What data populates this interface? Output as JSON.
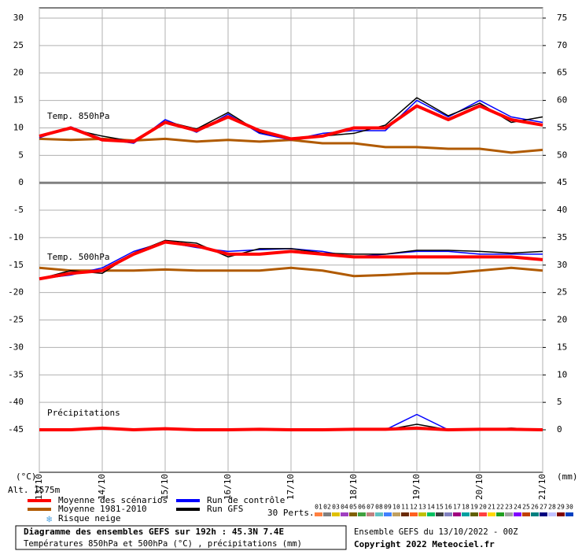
{
  "chart_data": {
    "type": "line",
    "title": "Diagramme des ensembles GEFS sur 192h : 45.3N 7.4E",
    "subtitle": "Températures 850hPa et 500hPa (°C) , précipitations (mm)",
    "run_info": "Ensemble GEFS du 13/10/2022 - 00Z",
    "copyright": "Copyright 2022 Meteociel.fr",
    "y_unit": "(°C)",
    "y2_unit": "(mm)",
    "altitude": "Alt. 1575m",
    "grid": true,
    "x": [
      0,
      12,
      24,
      36,
      48,
      60,
      72,
      84,
      96,
      108,
      120,
      132,
      144,
      156,
      168,
      180,
      192
    ],
    "xlim": [
      0,
      192
    ],
    "xticks": [
      {
        "value": 0,
        "label": "13/10"
      },
      {
        "value": 24,
        "label": "14/10"
      },
      {
        "value": 48,
        "label": "15/10"
      },
      {
        "value": 72,
        "label": "16/10"
      },
      {
        "value": 96,
        "label": "17/10"
      },
      {
        "value": 120,
        "label": "18/10"
      },
      {
        "value": 144,
        "label": "19/10"
      },
      {
        "value": 168,
        "label": "20/10"
      },
      {
        "value": 192,
        "label": "21/10"
      }
    ],
    "ylim": [
      -52.74,
      31.86
    ],
    "yticks": [
      30,
      25,
      20,
      15,
      10,
      5,
      0,
      -5,
      -10,
      -15,
      -20,
      -25,
      -30,
      -35,
      -40,
      -45
    ],
    "y2lim": [
      -7.74,
      76.86
    ],
    "y2ticks": [
      75,
      70,
      65,
      60,
      55,
      50,
      45,
      40,
      35,
      30,
      25,
      20,
      15,
      10,
      5,
      0
    ],
    "panels": [
      {
        "label": "Temp. 850hPa",
        "series": [
          {
            "name": "Moyenne 1981-2010",
            "color": "#b05a00",
            "values": [
              8,
              7.8,
              8,
              7.7,
              8,
              7.5,
              7.8,
              7.5,
              7.8,
              7.2,
              7.2,
              6.5,
              6.5,
              6.2,
              6.2,
              5.5,
              6
            ]
          },
          {
            "name": "Run de contrôle",
            "color": "#0000ff",
            "values": [
              8.2,
              10.2,
              8,
              7.2,
              11.5,
              9.2,
              12.5,
              9,
              7.8,
              9,
              9.5,
              9.5,
              15,
              12,
              15,
              12,
              11
            ]
          },
          {
            "name": "Run GFS",
            "color": "#000000",
            "values": [
              8.5,
              9.8,
              8.5,
              7.5,
              11.2,
              9.8,
              12.8,
              9.2,
              8,
              8.5,
              9,
              10.5,
              15.5,
              12.2,
              14.5,
              11,
              12
            ]
          },
          {
            "name": "Moyenne des scénarios",
            "color": "#ff0000",
            "values": [
              8.5,
              10,
              7.8,
              7.5,
              11,
              9.5,
              12,
              9.5,
              8,
              8.5,
              10,
              10,
              14,
              11.5,
              14,
              11.5,
              10.5
            ]
          }
        ]
      },
      {
        "label": "Temp. 500hPa",
        "series": [
          {
            "name": "Moyenne 1981-2010",
            "color": "#b05a00",
            "values": [
              -15.5,
              -16,
              -16,
              -16,
              -15.8,
              -16,
              -16,
              -16,
              -15.5,
              -16,
              -17,
              -16.8,
              -16.5,
              -16.5,
              -16,
              -15.5,
              -16
            ]
          },
          {
            "name": "Run de contrôle",
            "color": "#0000ff",
            "values": [
              -17.5,
              -16.8,
              -15.5,
              -12.5,
              -10.8,
              -11.8,
              -12.5,
              -12.2,
              -12,
              -12.5,
              -13.5,
              -13,
              -12.5,
              -12.5,
              -13,
              -13,
              -13
            ]
          },
          {
            "name": "Run GFS",
            "color": "#000000",
            "values": [
              -17.5,
              -16,
              -16.5,
              -12.8,
              -10.5,
              -11,
              -13.5,
              -12,
              -12,
              -12.8,
              -13,
              -13,
              -12.3,
              -12.3,
              -12.5,
              -12.8,
              -12.5
            ]
          },
          {
            "name": "Moyenne des scénarios",
            "color": "#ff0000",
            "values": [
              -17.5,
              -16.5,
              -16,
              -13,
              -10.8,
              -11.5,
              -13,
              -13,
              -12.5,
              -13,
              -13.5,
              -13.5,
              -13.5,
              -13.5,
              -13.5,
              -13.5,
              -14
            ]
          }
        ]
      },
      {
        "label": "Précipitations",
        "series": [
          {
            "name": "Run de contrôle",
            "color": "#0000ff",
            "axis": "y2",
            "values": [
              0,
              0,
              0.2,
              0,
              0.1,
              0,
              0,
              0.2,
              0,
              0,
              0,
              0,
              2.8,
              0,
              0,
              0,
              0
            ]
          },
          {
            "name": "Run GFS",
            "color": "#000000",
            "axis": "y2",
            "values": [
              0,
              0,
              0.4,
              0,
              0.2,
              0,
              0,
              0,
              0,
              0,
              0,
              0,
              1,
              0,
              0,
              0.3,
              0
            ]
          },
          {
            "name": "Moyenne des scénarios",
            "color": "#ff0000",
            "axis": "y2",
            "values": [
              0,
              0,
              0.3,
              0,
              0.2,
              0,
              0,
              0.1,
              0,
              0,
              0.1,
              0.1,
              0.3,
              0,
              0.1,
              0.1,
              0
            ]
          }
        ]
      }
    ],
    "snow_risk_label": "Risque neige",
    "members_label": "30 Perts.",
    "members": [
      {
        "name": "01",
        "color": "#ff8040"
      },
      {
        "name": "02",
        "color": "#808080"
      },
      {
        "name": "03",
        "color": "#e0c000"
      },
      {
        "name": "04",
        "color": "#a040c0"
      },
      {
        "name": "05",
        "color": "#806000"
      },
      {
        "name": "06",
        "color": "#40a040"
      },
      {
        "name": "07",
        "color": "#c08080"
      },
      {
        "name": "08",
        "color": "#60c0c0"
      },
      {
        "name": "09",
        "color": "#4080ff"
      },
      {
        "name": "10",
        "color": "#c0a060"
      },
      {
        "name": "11",
        "color": "#6a2a00"
      },
      {
        "name": "12",
        "color": "#ff6020"
      },
      {
        "name": "13",
        "color": "#c0c000"
      },
      {
        "name": "14",
        "color": "#00c060"
      },
      {
        "name": "15",
        "color": "#404040"
      },
      {
        "name": "16",
        "color": "#8080c0"
      },
      {
        "name": "17",
        "color": "#a00080"
      },
      {
        "name": "18",
        "color": "#00a0a0"
      },
      {
        "name": "19",
        "color": "#606000"
      },
      {
        "name": "20",
        "color": "#ff4040"
      },
      {
        "name": "21",
        "color": "#ffd700"
      },
      {
        "name": "22",
        "color": "#20a020"
      },
      {
        "name": "23",
        "color": "#a0a0a0"
      },
      {
        "name": "24",
        "color": "#8000ff"
      },
      {
        "name": "25",
        "color": "#c04000"
      },
      {
        "name": "26",
        "color": "#008080"
      },
      {
        "name": "27",
        "color": "#000080"
      },
      {
        "name": "28",
        "color": "#c0c0ff"
      },
      {
        "name": "29",
        "color": "#800000"
      },
      {
        "name": "30",
        "color": "#0040c0"
      }
    ]
  }
}
